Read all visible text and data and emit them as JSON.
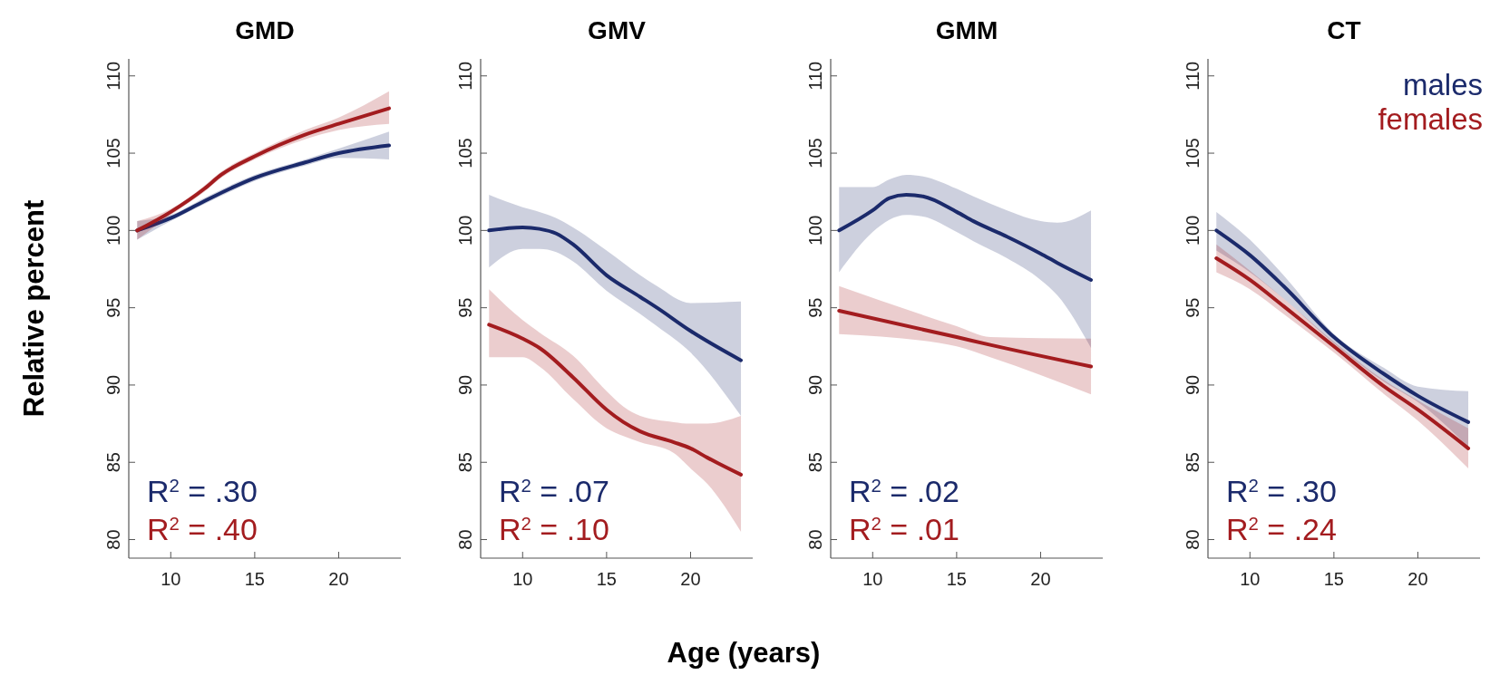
{
  "chart_data": [
    {
      "type": "line",
      "title": "GMD",
      "ylabel": "Relative percent",
      "xlim": [
        7.5,
        23.7
      ],
      "xticks": [
        10,
        15,
        20
      ],
      "ylim": [
        78.8,
        111.1
      ],
      "yticks": [
        80,
        85,
        90,
        95,
        100,
        105,
        110
      ],
      "annotations": [
        "R$^{2}$ = .30",
        "R$^{2}$ = .40"
      ],
      "series": [
        {
          "color": "#1b2a6b",
          "x": [
            8,
            10,
            12,
            15,
            18,
            20,
            23
          ],
          "values": [
            100,
            100.8,
            101.9,
            103.4,
            104.4,
            105.0,
            105.5
          ],
          "lower": [
            99.4,
            100.6,
            101.7,
            103.2,
            104.2,
            104.7,
            104.6
          ],
          "upper": [
            100.6,
            101.0,
            102.1,
            103.6,
            104.6,
            105.3,
            106.4
          ]
        },
        {
          "color": "#a31c1f",
          "x": [
            8,
            10,
            12,
            13,
            15,
            18,
            20,
            23
          ],
          "values": [
            100,
            101.2,
            102.7,
            103.6,
            104.8,
            106.2,
            106.9,
            107.9
          ],
          "lower": [
            99.4,
            101.0,
            102.5,
            103.4,
            104.6,
            105.9,
            106.5,
            106.9
          ],
          "upper": [
            100.6,
            101.4,
            102.9,
            103.8,
            105.0,
            106.5,
            107.3,
            109.0
          ]
        }
      ]
    },
    {
      "type": "line",
      "title": "GMV",
      "xlabel": "Age (years)",
      "xlim": [
        7.5,
        23.7
      ],
      "xticks": [
        10,
        15,
        20
      ],
      "ylim": [
        78.8,
        111.1
      ],
      "yticks": [
        80,
        85,
        90,
        95,
        100,
        105,
        110
      ],
      "annotations": [
        "R$^{2}$ = .07",
        "R$^{2}$ = .10"
      ],
      "series": [
        {
          "color": "#1b2a6b",
          "x": [
            8,
            10,
            11,
            12,
            13,
            15,
            17,
            18,
            20,
            23
          ],
          "values": [
            100.0,
            100.2,
            100.1,
            99.8,
            99.1,
            97.1,
            95.7,
            95.0,
            93.5,
            91.6
          ],
          "lower": [
            97.6,
            98.8,
            98.8,
            98.6,
            98.0,
            96.1,
            94.6,
            93.8,
            92.1,
            88.0
          ],
          "upper": [
            102.3,
            101.5,
            101.2,
            100.8,
            100.2,
            98.7,
            97.1,
            96.4,
            95.3,
            95.4
          ]
        },
        {
          "color": "#a31c1f",
          "x": [
            8,
            10,
            11,
            13,
            15,
            16,
            17,
            19,
            20,
            21,
            23
          ],
          "values": [
            93.9,
            93.0,
            92.4,
            90.5,
            88.4,
            87.6,
            87.0,
            86.3,
            85.9,
            85.3,
            84.2
          ],
          "lower": [
            91.8,
            91.8,
            91.2,
            89.1,
            87.2,
            86.7,
            86.3,
            85.6,
            84.6,
            83.6,
            80.5
          ],
          "upper": [
            96.2,
            94.2,
            93.4,
            91.9,
            89.6,
            88.6,
            88.0,
            87.6,
            87.5,
            87.5,
            88.0
          ]
        }
      ]
    },
    {
      "type": "line",
      "title": "GMM",
      "xlim": [
        7.5,
        23.7
      ],
      "xticks": [
        10,
        15,
        20
      ],
      "ylim": [
        78.8,
        111.1
      ],
      "yticks": [
        80,
        85,
        90,
        95,
        100,
        105,
        110
      ],
      "annotations": [
        "R$^{2}$ = .02",
        "R$^{2}$ = .01"
      ],
      "series": [
        {
          "color": "#1b2a6b",
          "x": [
            8,
            10,
            11,
            12,
            13,
            15,
            16,
            18,
            20,
            21,
            23
          ],
          "values": [
            100,
            101.3,
            102.1,
            102.3,
            102.2,
            101.2,
            100.6,
            99.6,
            98.5,
            97.9,
            96.8
          ],
          "lower": [
            97.3,
            99.9,
            100.7,
            101.0,
            100.9,
            99.9,
            99.3,
            98.2,
            96.8,
            95.8,
            92.4
          ],
          "upper": [
            102.8,
            102.8,
            103.3,
            103.6,
            103.5,
            102.7,
            102.2,
            101.3,
            100.6,
            100.5,
            101.3
          ]
        },
        {
          "color": "#a31c1f",
          "x": [
            8,
            15,
            17,
            23
          ],
          "values": [
            94.8,
            93.1,
            92.6,
            91.2
          ],
          "lower": [
            93.3,
            92.5,
            91.8,
            89.4
          ],
          "upper": [
            96.4,
            93.8,
            93.1,
            93.0
          ]
        }
      ]
    },
    {
      "type": "line",
      "title": "CT",
      "legend": "top right",
      "xlim": [
        7.5,
        23.7
      ],
      "xticks": [
        10,
        15,
        20
      ],
      "ylim": [
        78.8,
        111.1
      ],
      "yticks": [
        80,
        85,
        90,
        95,
        100,
        105,
        110
      ],
      "annotations": [
        "R$^{2}$ = .30",
        "R$^{2}$ = .24"
      ],
      "series": [
        {
          "name": "males",
          "color": "#1b2a6b",
          "x": [
            8,
            10,
            12,
            15,
            18,
            20,
            23
          ],
          "values": [
            100,
            98.4,
            96.4,
            93.1,
            90.7,
            89.3,
            87.6
          ],
          "lower": [
            98.7,
            97.3,
            95.6,
            92.7,
            90.2,
            88.9,
            86.0
          ],
          "upper": [
            101.2,
            99.4,
            97.1,
            93.3,
            91.1,
            89.9,
            89.6
          ]
        },
        {
          "name": "females",
          "color": "#a31c1f",
          "x": [
            8,
            10,
            12,
            15,
            18,
            20,
            23
          ],
          "values": [
            98.2,
            96.8,
            95.1,
            92.5,
            89.9,
            88.4,
            85.9
          ],
          "lower": [
            97.3,
            96.2,
            94.6,
            92.1,
            89.4,
            87.7,
            84.6
          ],
          "upper": [
            99.1,
            97.4,
            95.6,
            92.8,
            90.3,
            89.0,
            87.2
          ]
        }
      ]
    }
  ]
}
